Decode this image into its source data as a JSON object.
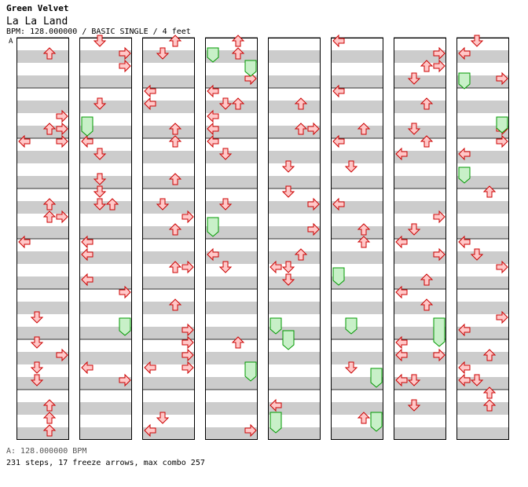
{
  "header": {
    "artist": "Green Velvet",
    "title": "La La Land",
    "info": "BPM: 128.000000 / BASIC SINGLE / 4 feet",
    "segment_label": "A"
  },
  "footer": {
    "bpm_line": "A: 128.000000 BPM",
    "stats_line": "231 steps, 17 freeze arrows, max combo 257"
  },
  "colors": {
    "stripe": "#cccccc",
    "arrow_fill": "#ffc8c8",
    "arrow_stroke": "#cc0000",
    "freeze_fill": "#c8f0c8",
    "freeze_stroke": "#009900",
    "border": "#000000"
  }
}
